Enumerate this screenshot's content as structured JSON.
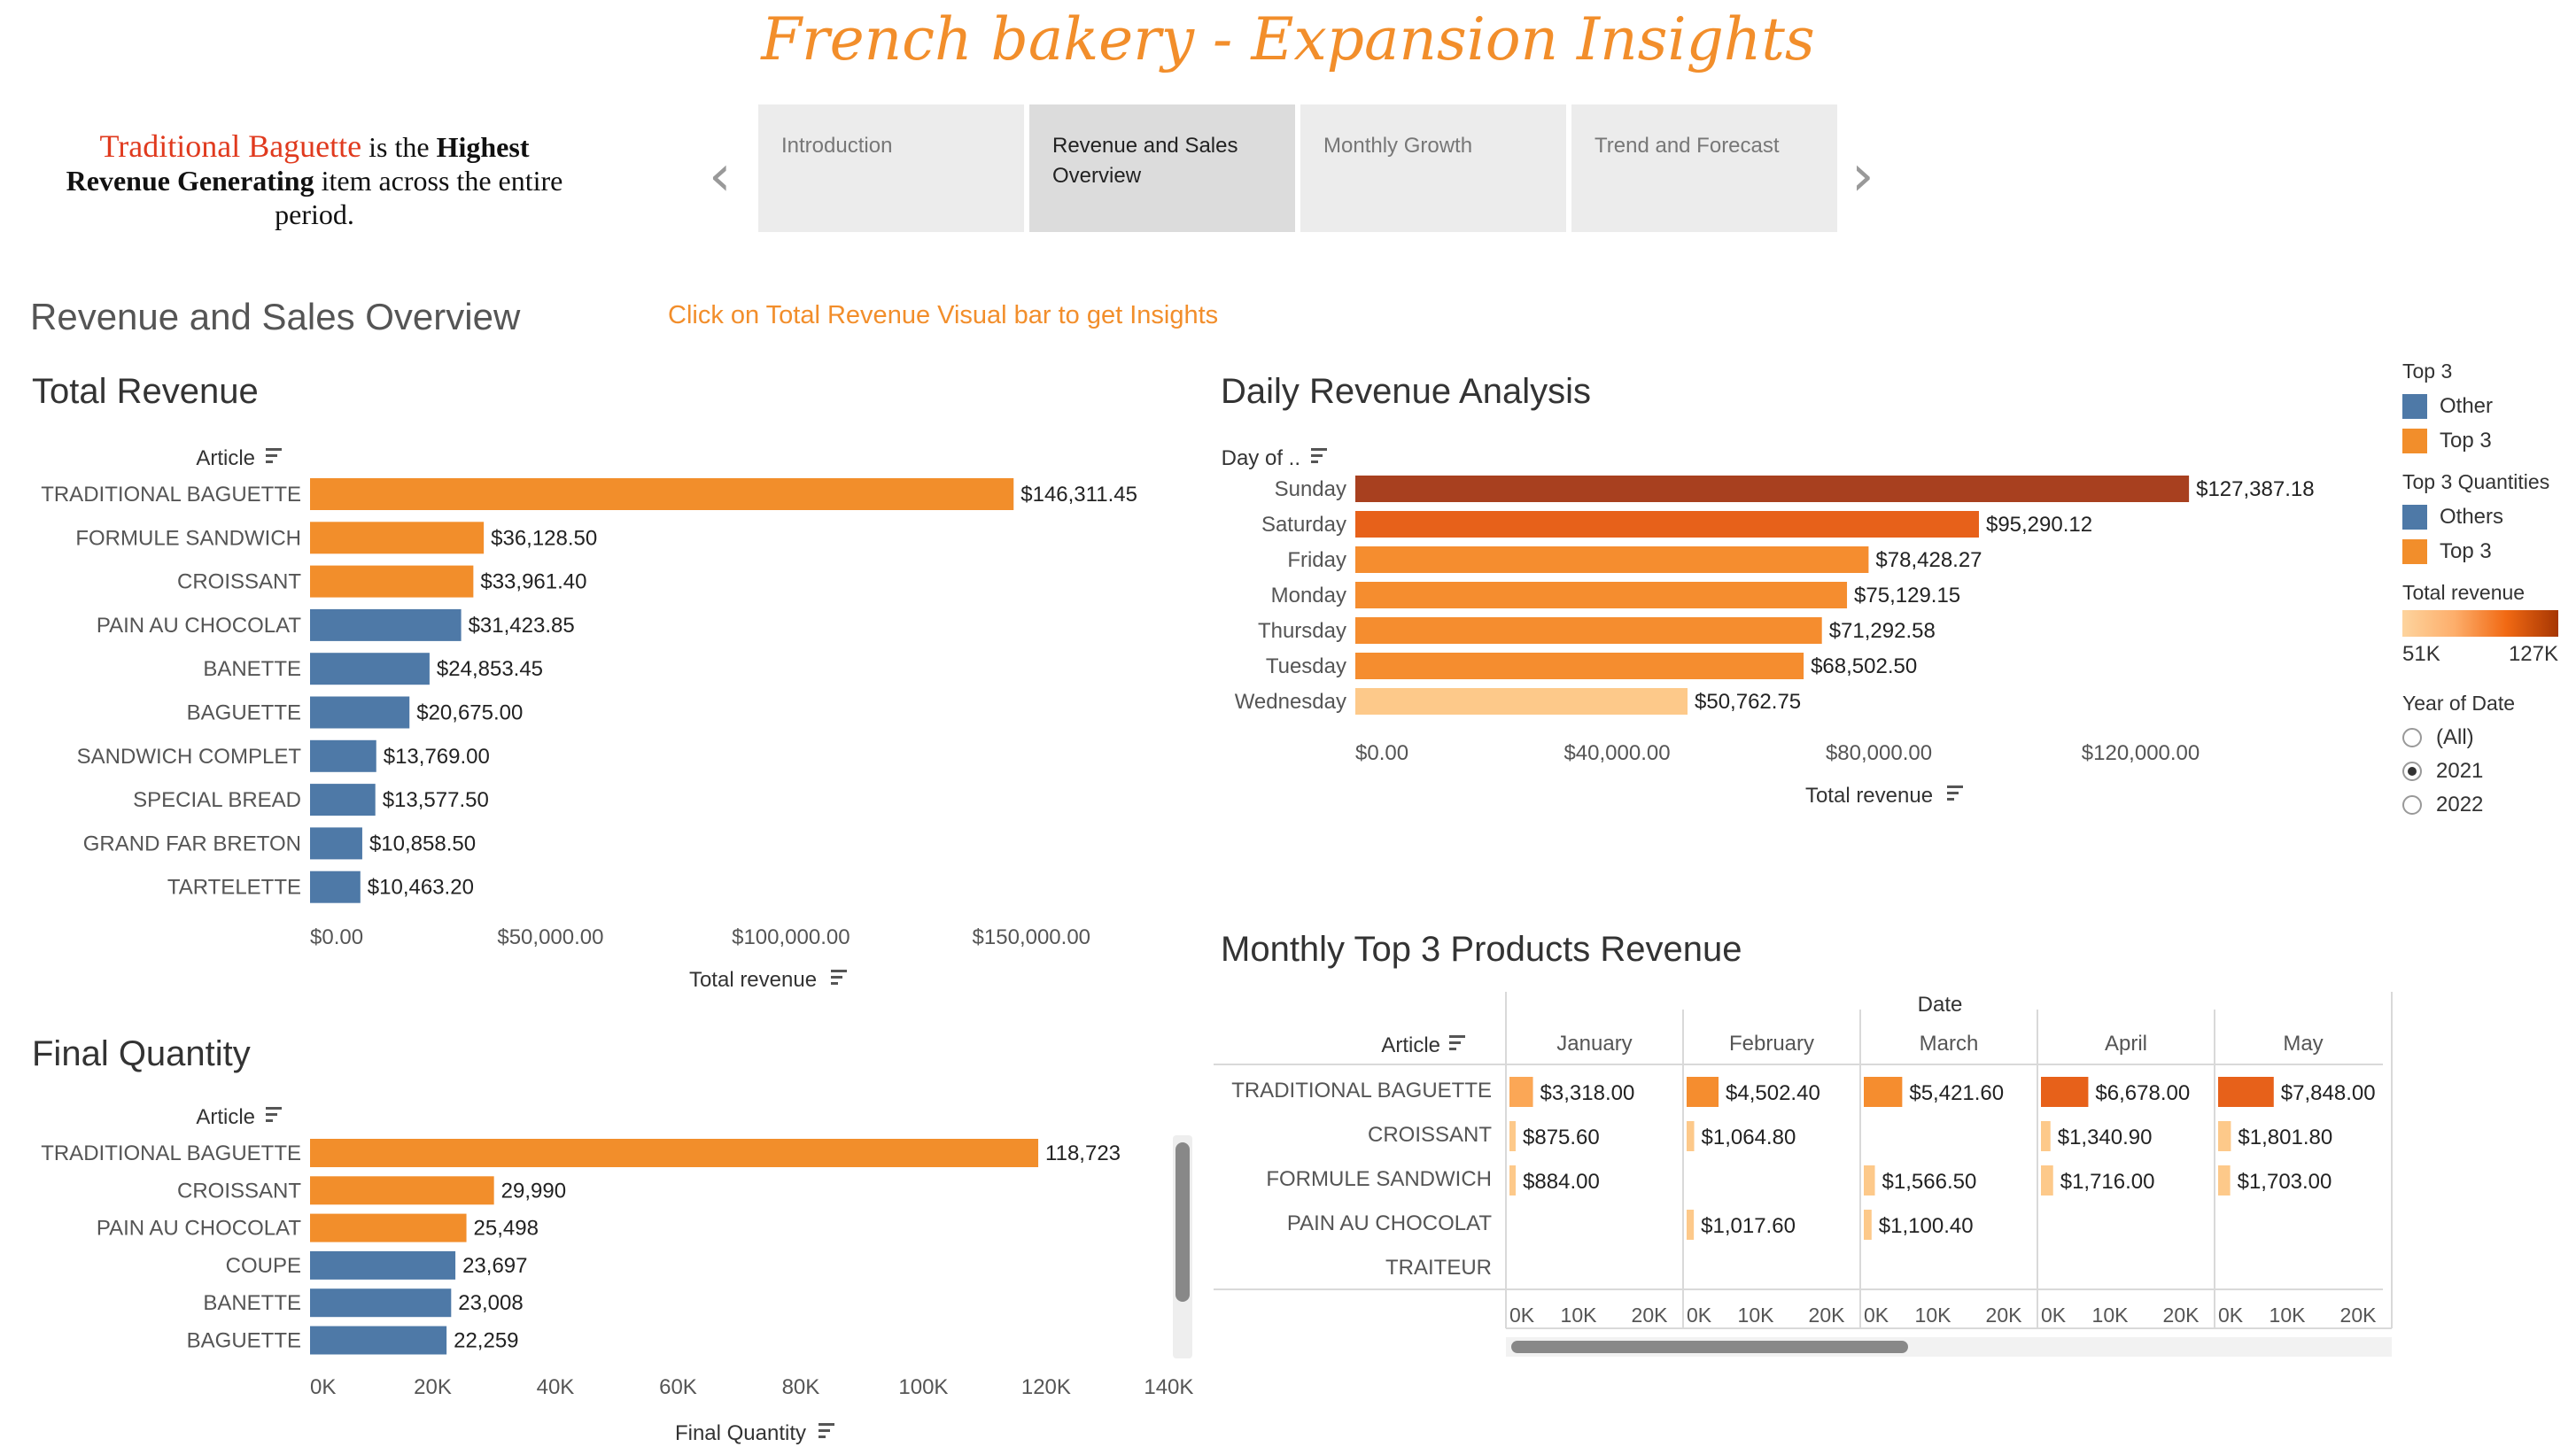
{
  "title": "French bakery - Expansion Insights",
  "insight": {
    "highlight": "Traditional Baguette",
    "text1": " is the ",
    "bold1": "Highest Revenue Generating",
    "text2": " item across the entire period."
  },
  "story_nav": {
    "prev_arrow": "‹",
    "next_arrow": "›",
    "tabs": [
      {
        "label": "Introduction"
      },
      {
        "label": "Revenue and Sales Overview"
      },
      {
        "label": "Monthly Growth"
      },
      {
        "label": "Trend and Forecast"
      }
    ]
  },
  "page_heading": "Revenue and Sales Overview",
  "hint": "Click on Total Revenue Visual bar to get Insights",
  "colors": {
    "orange": "#f28e2b",
    "blue": "#4e79a7",
    "scale": [
      "#fdc98a",
      "#fba756",
      "#f58d2f",
      "#e7611a",
      "#a8401f"
    ]
  },
  "legend": {
    "top3_title": "Top 3",
    "top3_items": [
      "Other",
      "Top 3"
    ],
    "qty_title": "Top 3 Quantities",
    "qty_items": [
      "Others",
      "Top 3"
    ],
    "rev_title": "Total revenue",
    "rev_min": "51K",
    "rev_max": "127K",
    "year_title": "Year of Date",
    "year_options": [
      "(All)",
      "2021",
      "2022"
    ],
    "year_selected": "2021"
  },
  "chart_data": [
    {
      "type": "bar",
      "title": "Total Revenue",
      "category_header": "Article",
      "xlabel": "Total revenue",
      "xlim": [
        0,
        175000
      ],
      "ticks": [
        0,
        50000,
        100000,
        150000
      ],
      "tick_labels": [
        "$0.00",
        "$50,000.00",
        "$100,000.00",
        "$150,000.00"
      ],
      "categories": [
        "TRADITIONAL BAGUETTE",
        "FORMULE SANDWICH",
        "CROISSANT",
        "PAIN AU CHOCOLAT",
        "BANETTE",
        "BAGUETTE",
        "SANDWICH COMPLET",
        "SPECIAL BREAD",
        "GRAND FAR BRETON",
        "TARTELETTE"
      ],
      "values": [
        146311.45,
        36128.5,
        33961.4,
        31423.85,
        24853.45,
        20675.0,
        13769.0,
        13577.5,
        10858.5,
        10463.2
      ],
      "labels": [
        "$146,311.45",
        "$36,128.50",
        "$33,961.40",
        "$31,423.85",
        "$24,853.45",
        "$20,675.00",
        "$13,769.00",
        "$13,577.50",
        "$10,858.50",
        "$10,463.20"
      ],
      "group": [
        "Top 3",
        "Top 3",
        "Top 3",
        "Other",
        "Other",
        "Other",
        "Other",
        "Other",
        "Other",
        "Other"
      ]
    },
    {
      "type": "bar",
      "title": "Final Quantity",
      "category_header": "Article",
      "xlabel": "Final Quantity",
      "xlim": [
        0,
        145000
      ],
      "ticks": [
        0,
        20000,
        40000,
        60000,
        80000,
        100000,
        120000,
        140000
      ],
      "tick_labels": [
        "0K",
        "20K",
        "40K",
        "60K",
        "80K",
        "100K",
        "120K",
        "140K"
      ],
      "categories": [
        "TRADITIONAL BAGUETTE",
        "CROISSANT",
        "PAIN AU CHOCOLAT",
        "COUPE",
        "BANETTE",
        "BAGUETTE"
      ],
      "values": [
        118723,
        29990,
        25498,
        23697,
        23008,
        22259
      ],
      "labels": [
        "118,723",
        "29,990",
        "25,498",
        "23,697",
        "23,008",
        "22,259"
      ],
      "group": [
        "Top 3",
        "Top 3",
        "Top 3",
        "Others",
        "Others",
        "Others"
      ]
    },
    {
      "type": "bar",
      "title": "Daily Revenue Analysis",
      "category_header": "Day of ..",
      "xlabel": "Total revenue",
      "xlim": [
        0,
        147000
      ],
      "ticks": [
        0,
        40000,
        80000,
        120000
      ],
      "tick_labels": [
        "$0.00",
        "$40,000.00",
        "$80,000.00",
        "$120,000.00"
      ],
      "categories": [
        "Sunday",
        "Saturday",
        "Friday",
        "Monday",
        "Thursday",
        "Tuesday",
        "Wednesday"
      ],
      "values": [
        127387.18,
        95290.12,
        78428.27,
        75129.15,
        71292.58,
        68502.5,
        50762.75
      ],
      "labels": [
        "$127,387.18",
        "$95,290.12",
        "$78,428.27",
        "$75,129.15",
        "$71,292.58",
        "$68,502.50",
        "$50,762.75"
      ],
      "color_index": [
        4,
        3,
        2,
        2,
        2,
        2,
        0
      ]
    },
    {
      "type": "table",
      "title": "Monthly Top 3 Products Revenue",
      "column_header": "Date",
      "row_header": "Article",
      "months": [
        "January",
        "February",
        "March",
        "April",
        "May"
      ],
      "rows": [
        "TRADITIONAL BAGUETTE",
        "CROISSANT",
        "FORMULE SANDWICH",
        "PAIN AU CHOCOLAT",
        "TRAITEUR"
      ],
      "axis_ticks": [
        0,
        10000,
        20000
      ],
      "axis_tick_labels": [
        "0K",
        "10K",
        "20K"
      ],
      "cells": [
        [
          {
            "v": 3318.0,
            "l": "$3,318.00",
            "c": 1
          },
          {
            "v": 4502.4,
            "l": "$4,502.40",
            "c": 2
          },
          {
            "v": 5421.6,
            "l": "$5,421.60",
            "c": 2
          },
          {
            "v": 6678.0,
            "l": "$6,678.00",
            "c": 3
          },
          {
            "v": 7848.0,
            "l": "$7,848.00",
            "c": 3
          }
        ],
        [
          {
            "v": 875.6,
            "l": "$875.60",
            "c": 0
          },
          {
            "v": 1064.8,
            "l": "$1,064.80",
            "c": 0
          },
          null,
          {
            "v": 1340.9,
            "l": "$1,340.90",
            "c": 0
          },
          {
            "v": 1801.8,
            "l": "$1,801.80",
            "c": 0
          }
        ],
        [
          {
            "v": 884.0,
            "l": "$884.00",
            "c": 0
          },
          null,
          {
            "v": 1566.5,
            "l": "$1,566.50",
            "c": 0
          },
          {
            "v": 1716.0,
            "l": "$1,716.00",
            "c": 0
          },
          {
            "v": 1703.0,
            "l": "$1,703.00",
            "c": 0
          }
        ],
        [
          null,
          {
            "v": 1017.6,
            "l": "$1,017.60",
            "c": 0
          },
          {
            "v": 1100.4,
            "l": "$1,100.40",
            "c": 0
          },
          null,
          null
        ],
        [
          null,
          null,
          null,
          null,
          null
        ]
      ]
    }
  ]
}
